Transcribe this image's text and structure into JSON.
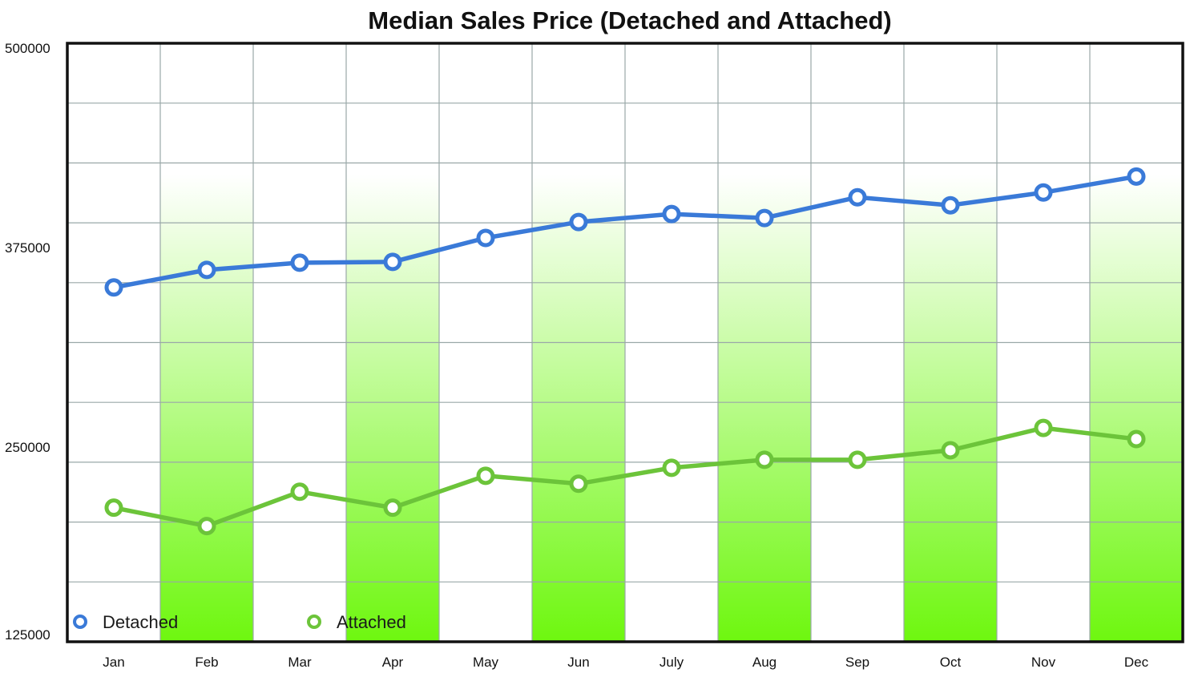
{
  "chart_data": {
    "type": "line",
    "title": "Median Sales Price (Detached and Attached)",
    "xlabel": "",
    "ylabel": "",
    "categories": [
      "Jan",
      "Feb",
      "Mar",
      "Apr",
      "May",
      "Jun",
      "July",
      "Aug",
      "Sep",
      "Oct",
      "Nov",
      "Dec"
    ],
    "ylim": [
      125000,
      500000
    ],
    "yticks": [
      "500000",
      "375000",
      "250000",
      "125000"
    ],
    "grid": true,
    "legend_position": "bottom-left",
    "series": [
      {
        "name": "Detached",
        "color": "#3a7ad8",
        "values": [
          347000,
          358000,
          362500,
          363000,
          378000,
          388000,
          393000,
          390500,
          403500,
          398500,
          406500,
          416500
        ]
      },
      {
        "name": "Attached",
        "color": "#6cc43a",
        "values": [
          209000,
          197500,
          219000,
          209000,
          229000,
          224000,
          234000,
          239000,
          239000,
          245000,
          259000,
          252000
        ]
      }
    ],
    "colors": {
      "band_top": "#ffffff",
      "band_bottom": "#6ef70f",
      "grid": "#9aa8a8",
      "frame": "#111111"
    }
  }
}
